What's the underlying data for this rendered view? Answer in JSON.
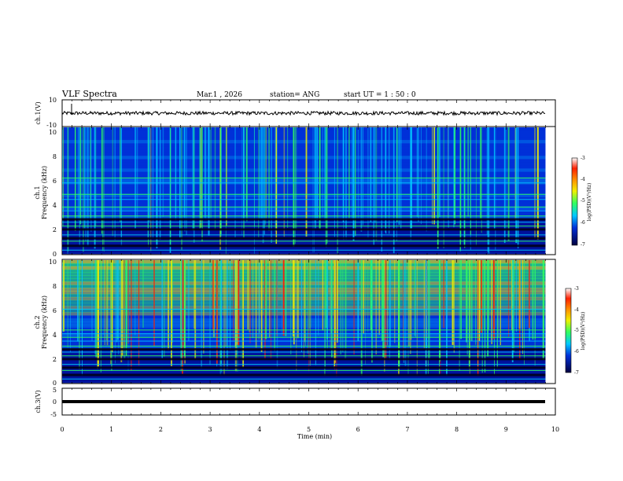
{
  "header": {
    "title": "VLF Spectra",
    "date": "Mar.1  , 2026",
    "station": "station= ANG",
    "start": "start  UT =   1 : 50 : 0"
  },
  "chart_data": [
    {
      "type": "line",
      "name": "ch1-waveform",
      "ylabel": "ch.1(V)",
      "ylim": [
        -10,
        10
      ],
      "yticks": [
        "10",
        "-10"
      ],
      "xlim": [
        0,
        10
      ],
      "series": [
        {
          "name": "ch.1",
          "approx_level": 0,
          "noise_amplitude": 1.3,
          "x_end": 9.8
        }
      ]
    },
    {
      "type": "heatmap",
      "name": "ch1-spectrogram",
      "ylabel": [
        "ch.1",
        "Frequency (kHz)"
      ],
      "ylim": [
        0,
        10
      ],
      "yticks": [
        "10",
        "8",
        "6",
        "4",
        "2",
        "0"
      ],
      "xlim": [
        0,
        9.8
      ],
      "colorbar": {
        "label": "log(PSD)(V²/Hz)",
        "range": [
          -7,
          -3
        ],
        "ticks": [
          "-3",
          "-4",
          "-5",
          "-6",
          "-7"
        ]
      },
      "bands_khz": [
        0.3,
        1.0,
        1.5,
        2.2,
        2.5,
        3.0,
        3.4,
        3.7,
        4.3,
        4.7,
        5.6,
        6.0
      ]
    },
    {
      "type": "heatmap",
      "name": "ch2-spectrogram",
      "ylabel": [
        "ch.2",
        "Frequency (kHz)"
      ],
      "ylim": [
        0,
        10
      ],
      "yticks": [
        "10",
        "8",
        "6",
        "4",
        "2",
        "0"
      ],
      "xlim": [
        0,
        9.8
      ],
      "colorbar": {
        "label": "log(PSD)(V²/Hz)",
        "range": [
          -7,
          -3
        ],
        "ticks": [
          "-3",
          "-4",
          "-5",
          "-6",
          "-7"
        ]
      },
      "bands_khz": [
        0.3,
        1.0,
        1.5,
        2.2,
        2.5,
        3.0,
        3.4,
        3.7,
        4.0,
        4.3,
        6.0
      ]
    },
    {
      "type": "line",
      "name": "ch3-waveform",
      "ylabel": "ch.3(V)",
      "ylim": [
        -5,
        5
      ],
      "yticks": [
        "5",
        "0",
        "-5"
      ],
      "xlim": [
        0,
        10
      ],
      "series": [
        {
          "name": "ch.3",
          "approx_level": -0.8,
          "x_end": 9.8
        }
      ]
    }
  ],
  "xaxis": {
    "label": "Time  (min)",
    "ticks": [
      "0",
      "1",
      "2",
      "3",
      "4",
      "5",
      "6",
      "7",
      "8",
      "9",
      "10"
    ]
  },
  "colors": {
    "deep": "#00007a",
    "low": "#0030d8",
    "mid": "#00c8ff",
    "green": "#30ff60",
    "yellow": "#f0f000",
    "red": "#ff2000"
  }
}
